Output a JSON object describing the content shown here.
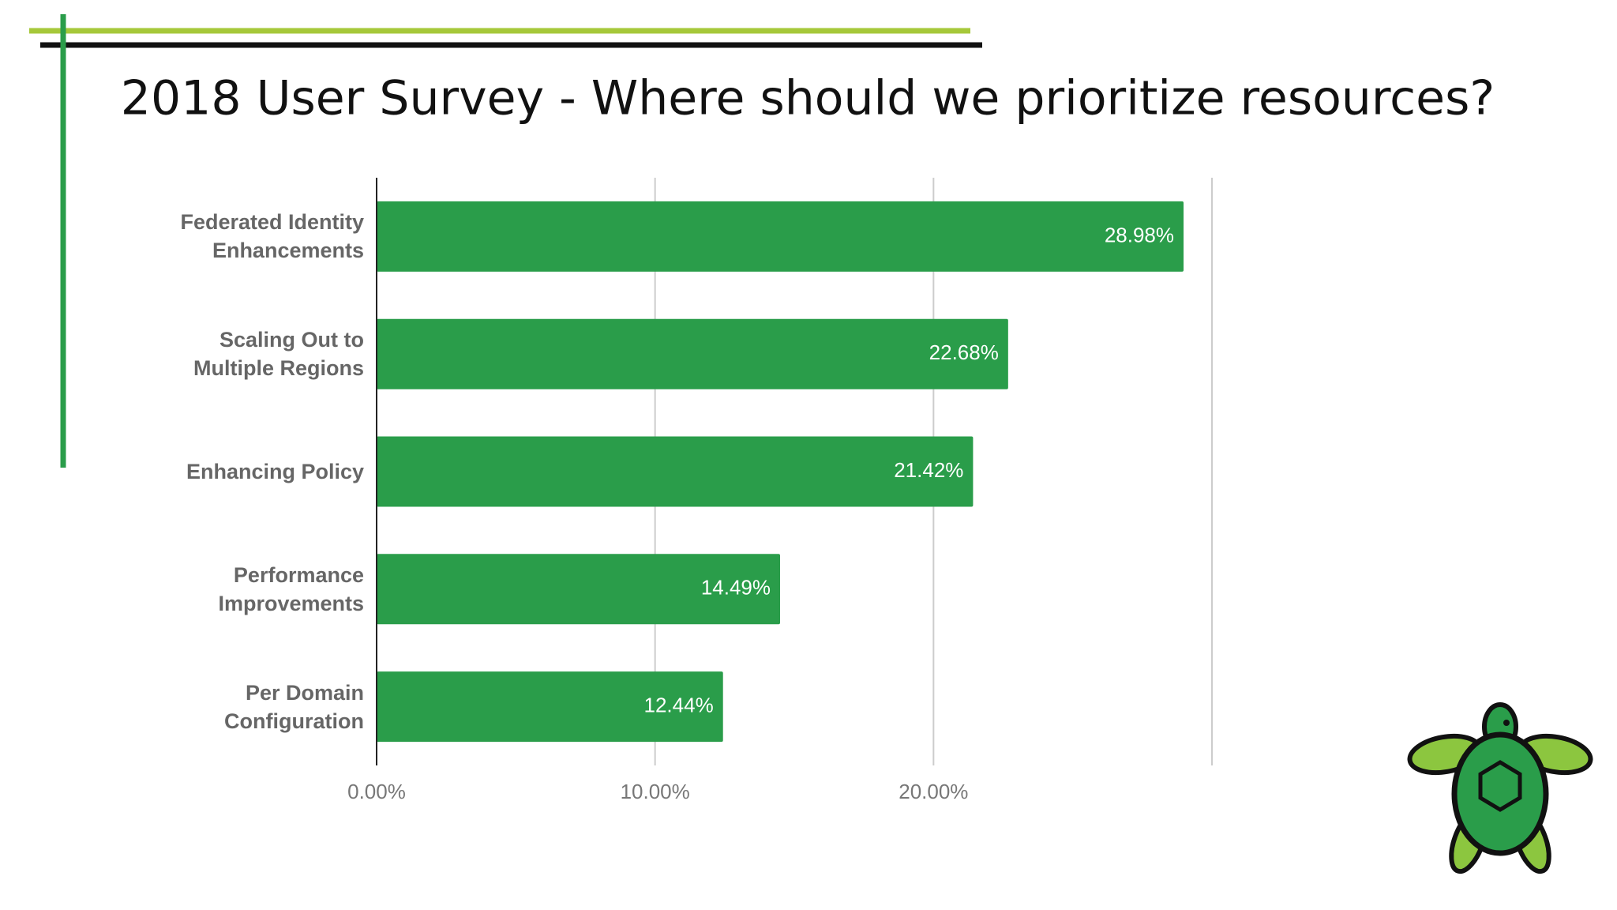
{
  "chart_data": {
    "type": "bar",
    "orientation": "horizontal",
    "title": "2018 User Survey - Where should we prioritize resources?",
    "categories": [
      "Federated Identity Enhancements",
      "Scaling Out to Multiple Regions",
      "Enhancing Policy",
      "Performance Improvements",
      "Per Domain Configuration"
    ],
    "values": [
      28.98,
      22.68,
      21.42,
      14.49,
      12.44
    ],
    "value_labels": [
      "28.98%",
      "22.68%",
      "21.42%",
      "14.49%",
      "12.44%"
    ],
    "color": "#2a9d4a",
    "xlim": [
      0,
      30
    ],
    "xticks": [
      {
        "value": 0,
        "label": "0.00%"
      },
      {
        "value": 10,
        "label": "10.00%"
      },
      {
        "value": 20,
        "label": "20.00%"
      }
    ],
    "grid": true
  }
}
